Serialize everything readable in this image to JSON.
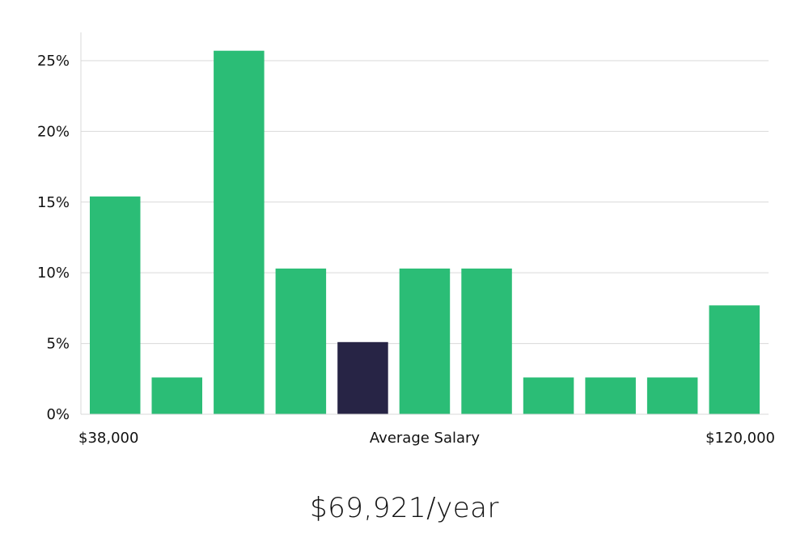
{
  "chart_data": {
    "type": "bar",
    "xlabel": "Average Salary",
    "x_range_labels": [
      "$38,000",
      "$120,000"
    ],
    "ylim": [
      0,
      27
    ],
    "yticks": [
      0,
      5,
      10,
      15,
      20,
      25
    ],
    "ytick_suffix": "%",
    "grid": true,
    "values": [
      15.4,
      2.6,
      25.7,
      10.3,
      5.1,
      10.3,
      10.3,
      2.6,
      2.6,
      2.6,
      7.7
    ],
    "highlight_index": 4,
    "colors": {
      "bar": "#2bbd76",
      "highlight": "#272445"
    }
  },
  "summary": {
    "average_salary_text": "$69,921/year"
  }
}
